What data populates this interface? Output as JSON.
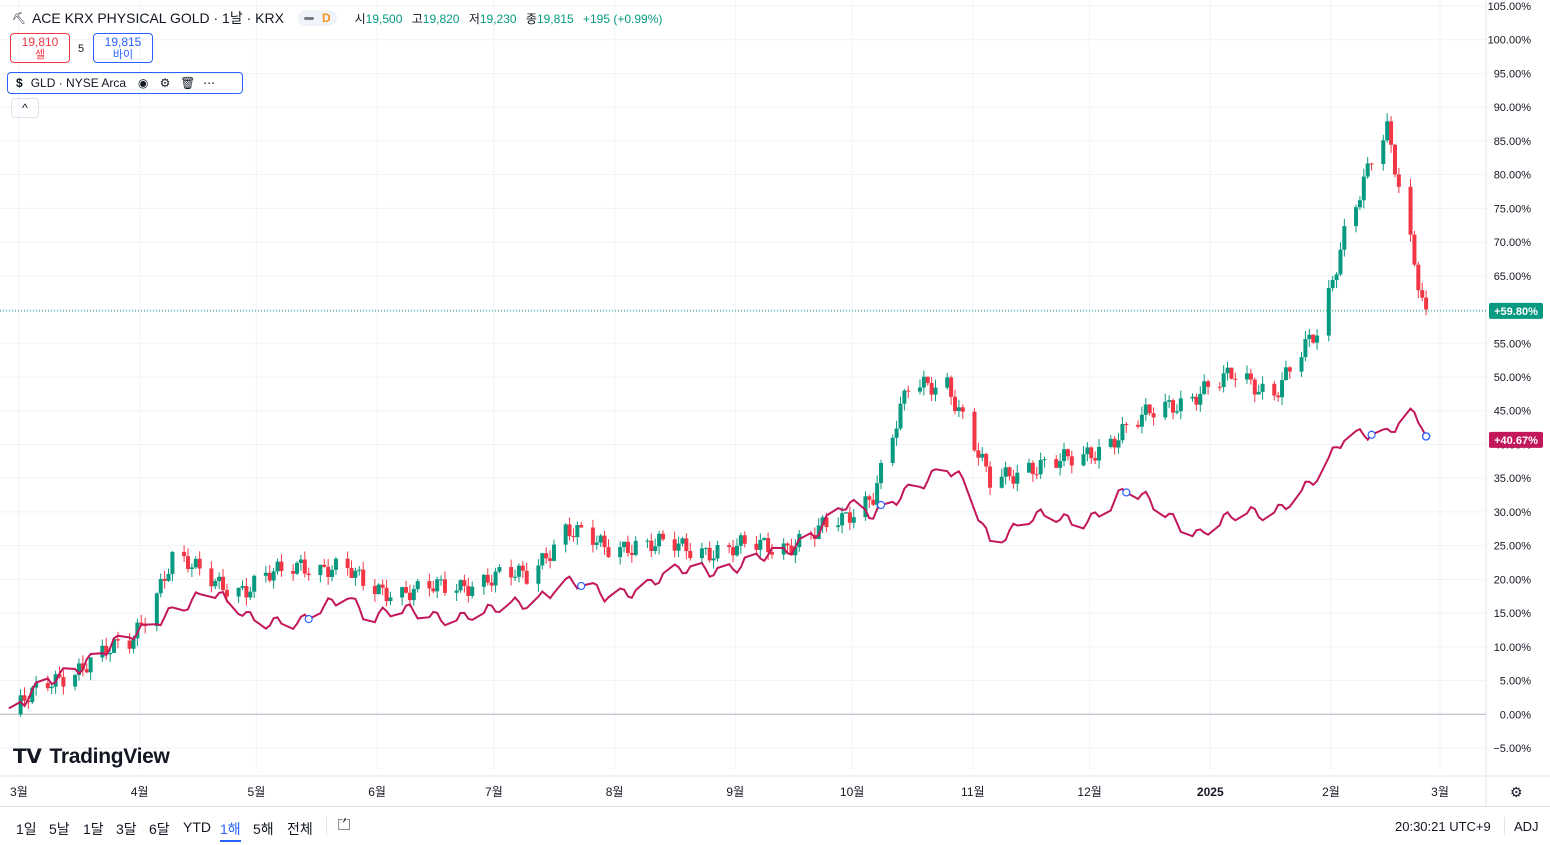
{
  "header": {
    "title": "ACE KRX PHYSICAL GOLD · 1날 · KRX",
    "interval_badge": "D",
    "open_label": "시",
    "open": "19,500",
    "high_label": "고",
    "high": "19,820",
    "low_label": "저",
    "low": "19,230",
    "close_label": "종",
    "close": "19,815",
    "change": "+195 (+0.99%)"
  },
  "trade": {
    "sell_price": "19,810",
    "sell_label": "셀",
    "spread": "5",
    "buy_price": "19,815",
    "buy_label": "바이"
  },
  "compare_legend": {
    "symbol_icon": "$",
    "label": "GLD · NYSE Arca",
    "icons": [
      "eye-icon",
      "settings-icon",
      "trash-icon",
      "more-icon"
    ]
  },
  "collapse_icon": "^",
  "brand": "TradingView",
  "timeframes": [
    "1일",
    "5날",
    "1달",
    "3달",
    "6달",
    "YTD",
    "1해",
    "5해",
    "전체"
  ],
  "active_timeframe": "1해",
  "clock": "20:30:21 UTC+9",
  "adj_label": "ADJ",
  "colors": {
    "up": "#089981",
    "down": "#f23645",
    "compare": "#c2185b",
    "accent": "#2962ff"
  },
  "chart_data": [
    {
      "type": "candlestick",
      "name": "ACE KRX PHYSICAL GOLD",
      "x": [
        "2024-03-01",
        "2024-03-15",
        "2024-04-01",
        "2024-04-12",
        "2024-04-22",
        "2024-05-01",
        "2024-05-15",
        "2024-05-27",
        "2024-06-01",
        "2024-06-14",
        "2024-07-01",
        "2024-07-12",
        "2024-07-22",
        "2024-08-01",
        "2024-08-09",
        "2024-08-21",
        "2024-09-01",
        "2024-09-16",
        "2024-10-01",
        "2024-10-09",
        "2024-10-18",
        "2024-10-28",
        "2024-11-01",
        "2024-11-08",
        "2024-11-18",
        "2024-12-01",
        "2024-12-13",
        "2025-01-01",
        "2025-01-10",
        "2025-01-20",
        "2025-02-01",
        "2025-02-07",
        "2025-02-14",
        "2025-02-18",
        "2025-02-24",
        "2025-02-27",
        "2025-02-28"
      ],
      "close_pct": [
        0.0,
        6.0,
        10.5,
        23.0,
        20.0,
        18.5,
        22.5,
        21.0,
        19.0,
        18.0,
        20.0,
        20.5,
        27.5,
        24.5,
        25.5,
        24.5,
        24.5,
        25.0,
        28.5,
        33.0,
        48.0,
        49.5,
        44.0,
        34.0,
        37.0,
        37.5,
        42.5,
        48.0,
        50.0,
        48.0,
        57.0,
        72.0,
        82.0,
        86.0,
        70.0,
        62.0,
        59.8
      ],
      "y_axis": {
        "min": -5,
        "max": 105,
        "unit": "%",
        "ticks": [
          "105.00%",
          "100.00%",
          "95.00%",
          "90.00%",
          "85.00%",
          "80.00%",
          "75.00%",
          "70.00%",
          "65.00%",
          "60.00%",
          "55.00%",
          "50.00%",
          "45.00%",
          "40.00%",
          "35.00%",
          "30.00%",
          "25.00%",
          "20.00%",
          "15.00%",
          "10.00%",
          "5.00%",
          "0.00%",
          "−5.00%"
        ]
      },
      "x_axis": {
        "ticks": [
          "3월",
          "4월",
          "5월",
          "6월",
          "7월",
          "8월",
          "9월",
          "10월",
          "11월",
          "12월",
          "2025",
          "2월",
          "3월"
        ]
      },
      "last_value_label": "+59.80%"
    },
    {
      "type": "line",
      "name": "GLD · NYSE Arca",
      "x": [
        "2024-03-01",
        "2024-03-15",
        "2024-04-01",
        "2024-04-12",
        "2024-04-22",
        "2024-05-01",
        "2024-05-15",
        "2024-05-27",
        "2024-06-01",
        "2024-06-14",
        "2024-07-01",
        "2024-07-12",
        "2024-07-22",
        "2024-08-01",
        "2024-08-09",
        "2024-08-21",
        "2024-09-01",
        "2024-09-16",
        "2024-10-01",
        "2024-10-09",
        "2024-10-18",
        "2024-10-28",
        "2024-11-01",
        "2024-11-08",
        "2024-11-18",
        "2024-12-01",
        "2024-12-13",
        "2025-01-01",
        "2025-01-10",
        "2025-01-20",
        "2025-02-01",
        "2025-02-07",
        "2025-02-14",
        "2025-02-18",
        "2025-02-24",
        "2025-02-27",
        "2025-02-28"
      ],
      "y": [
        0.0,
        6.5,
        11.0,
        16.0,
        17.5,
        15.0,
        13.0,
        18.5,
        14.5,
        15.0,
        14.5,
        17.0,
        19.5,
        17.5,
        19.0,
        21.0,
        22.0,
        23.5,
        31.0,
        29.0,
        34.0,
        36.0,
        34.0,
        26.0,
        29.0,
        28.5,
        33.0,
        27.0,
        29.0,
        30.5,
        35.0,
        41.0,
        42.5,
        42.0,
        44.0,
        42.5,
        40.67
      ],
      "last_value_label": "+40.67%"
    }
  ]
}
